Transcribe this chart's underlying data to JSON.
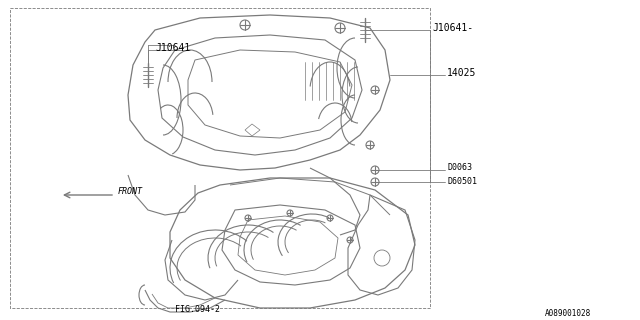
{
  "bg_color": "#ffffff",
  "line_color": "#7a7a7a",
  "text_color": "#000000",
  "fig_width": 6.4,
  "fig_height": 3.2,
  "dpi": 100,
  "labels": {
    "J10641_left": "J10641",
    "J10641_right": "J10641-",
    "14025": "14025",
    "D0063": "D0063",
    "D60501": "D60501",
    "FRONT": "FRONT",
    "FIG094_2": "FIG.094-2",
    "part_num": "A089001028"
  }
}
